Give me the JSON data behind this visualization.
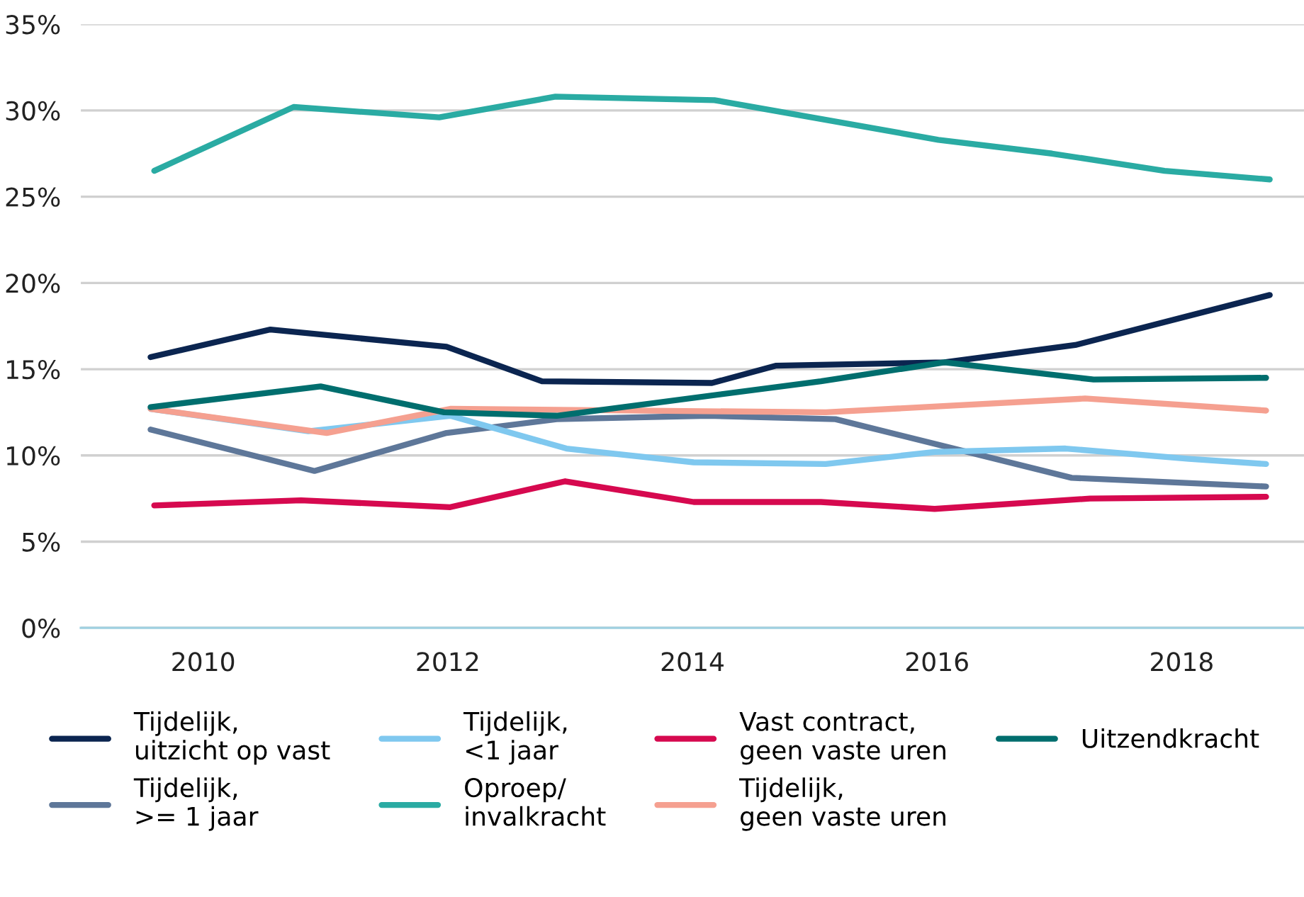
{
  "chart_data": {
    "type": "line",
    "xlim": [
      2009,
      2019
    ],
    "xticks": [
      2010,
      2012,
      2014,
      2016,
      2018
    ],
    "ylim": [
      0,
      35
    ],
    "yticks": [
      {
        "value": 0,
        "label": "0%"
      },
      {
        "value": 5,
        "label": "5%"
      },
      {
        "value": 10,
        "label": "10%"
      },
      {
        "value": 15,
        "label": "15%"
      },
      {
        "value": 20,
        "label": "20%"
      },
      {
        "value": 25,
        "label": "25%"
      },
      {
        "value": 30,
        "label": "30%"
      },
      {
        "value": 35,
        "label": "35%"
      }
    ],
    "grid": "y",
    "legend": "bottom",
    "marker": "none",
    "line_style": "solid",
    "series": [
      {
        "name": "Tijdelijk,\nuitzicht op vast",
        "color": "#0b2550",
        "x": [
          2009.57,
          2010.55,
          2011.99,
          2012.77,
          2014.16,
          2014.68,
          2016.06,
          2017.13,
          2018.72
        ],
        "values": [
          15.7,
          17.3,
          16.3,
          14.3,
          14.2,
          15.2,
          15.4,
          16.4,
          19.3
        ]
      },
      {
        "name": "Tijdelijk,\n>= 1 jaar",
        "color": "#5e7799",
        "x": [
          2009.57,
          2010.91,
          2011.99,
          2012.89,
          2014.13,
          2015.17,
          2017.1,
          2018.69
        ],
        "values": [
          11.5,
          9.1,
          11.3,
          12.1,
          12.3,
          12.1,
          8.7,
          8.2
        ]
      },
      {
        "name": "Tijdelijk,\n<1 jaar",
        "color": "#7fc8ef",
        "x": [
          2009.57,
          2010.86,
          2012.02,
          2012.97,
          2014.01,
          2015.09,
          2015.98,
          2017.05,
          2018.06,
          2018.69
        ],
        "values": [
          12.7,
          11.4,
          12.3,
          10.4,
          9.6,
          9.5,
          10.2,
          10.4,
          9.8,
          9.5
        ]
      },
      {
        "name": "Oproep/\ninvalkracht",
        "color": "#2aaba3",
        "x": [
          2009.6,
          2010.74,
          2011.93,
          2012.88,
          2014.18,
          2016.01,
          2016.94,
          2017.86,
          2018.72
        ],
        "values": [
          26.5,
          30.2,
          29.6,
          30.8,
          30.6,
          28.3,
          27.5,
          26.5,
          26.0
        ]
      },
      {
        "name": "Vast contract,\ngeen vaste uren",
        "color": "#d6094f",
        "x": [
          2009.6,
          2010.8,
          2012.02,
          2012.96,
          2014.01,
          2015.05,
          2015.98,
          2017.25,
          2018.69
        ],
        "values": [
          7.1,
          7.4,
          7.0,
          8.5,
          7.3,
          7.3,
          6.9,
          7.5,
          7.6
        ]
      },
      {
        "name": "Tijdelijk,\ngeen vaste uren",
        "color": "#f5a090",
        "x": [
          2009.57,
          2011.01,
          2012.02,
          2015.09,
          2017.21,
          2018.69
        ],
        "values": [
          12.7,
          11.3,
          12.7,
          12.5,
          13.3,
          12.6
        ]
      },
      {
        "name": "Uitzendkracht",
        "color": "#006e6e",
        "x": [
          2009.57,
          2010.96,
          2011.97,
          2012.89,
          2015.05,
          2016.06,
          2017.28,
          2018.69
        ],
        "values": [
          12.8,
          14.0,
          12.5,
          12.3,
          14.3,
          15.4,
          14.4,
          14.5
        ]
      }
    ]
  }
}
